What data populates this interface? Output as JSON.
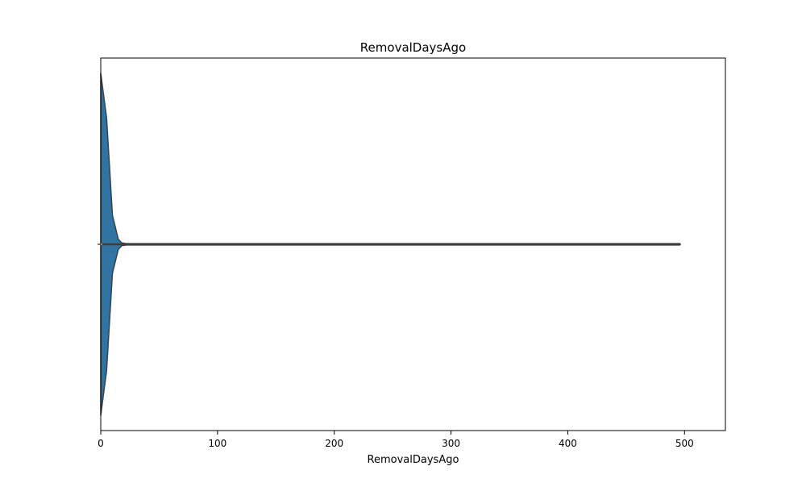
{
  "chart_data": {
    "type": "violin",
    "orientation": "horizontal",
    "title": "RemovalDaysAgo",
    "xlabel": "RemovalDaysAgo",
    "ylabel": "",
    "xlim": [
      0,
      535
    ],
    "xticks": [
      0,
      100,
      200,
      300,
      400,
      500
    ],
    "xtick_labels": [
      "0",
      "100",
      "200",
      "300",
      "400",
      "500"
    ],
    "grid": false,
    "legend": "none",
    "series": [
      {
        "name": "RemovalDaysAgo",
        "color": "#3274a1",
        "edge_color": "#3f3f3f",
        "min": 0,
        "max": 496,
        "density_profile": {
          "x": [
            0,
            5,
            10,
            15,
            18,
            22,
            60,
            100,
            200,
            300,
            400,
            496
          ],
          "half_width": [
            1.0,
            0.74,
            0.17,
            0.03,
            0.008,
            0.004,
            0.004,
            0.004,
            0.004,
            0.004,
            0.004,
            0.004
          ]
        },
        "inner_box": {
          "q1": 0,
          "median": 0,
          "q3": 2
        }
      }
    ]
  }
}
